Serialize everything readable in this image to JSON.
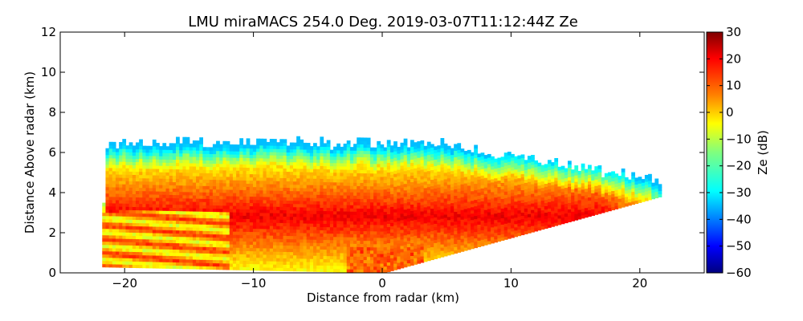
{
  "chart_data": {
    "type": "heatmap",
    "title": "LMU miraMACS 254.0 Deg. 2019-03-07T11:12:44Z  Ze",
    "xlabel": "Distance from radar (km)",
    "ylabel": "Distance Above radar  (km)",
    "xlim": [
      -25,
      25
    ],
    "ylim": [
      0,
      12
    ],
    "xticks": [
      -20,
      -10,
      0,
      10,
      20
    ],
    "yticks": [
      0,
      2,
      4,
      6,
      8,
      10,
      12
    ],
    "colorbar": {
      "label": "Ze (dB)",
      "range": [
        -60,
        30
      ],
      "ticks": [
        30,
        20,
        10,
        0,
        -10,
        -20,
        -30,
        -40,
        -50,
        -60
      ],
      "colormap": "jet"
    },
    "scan": {
      "radar_position_km": [
        0,
        0
      ],
      "left_edge_top_km": [
        -21.5,
        6.2
      ],
      "left_edge_bottom_km": [
        -22,
        0.3
      ],
      "right_edge_top_km": [
        21.5,
        4.5
      ],
      "right_edge_bottom_km": [
        21.5,
        3.8
      ],
      "echo_top_height_km": 6.4,
      "core_height_range_km": [
        1.5,
        4.0
      ],
      "core_ze_dB": 20,
      "edge_ze_dB": -20
    }
  },
  "colors": {
    "jet": [
      "#00007f",
      "#0000ff",
      "#007fff",
      "#00ffff",
      "#7fff7f",
      "#ffff00",
      "#ff7f00",
      "#ff0000",
      "#7f0000"
    ]
  }
}
